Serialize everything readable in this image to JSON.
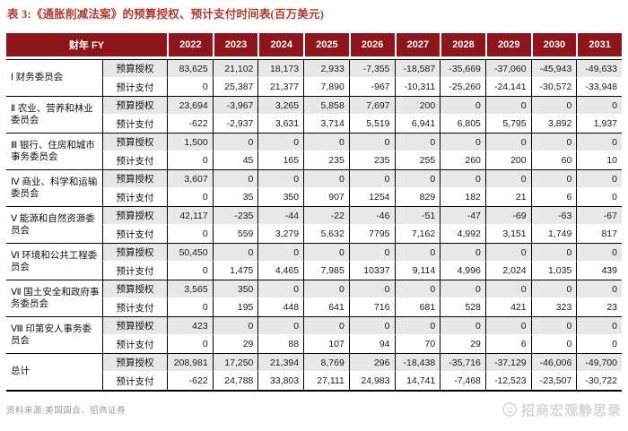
{
  "title": "表 3:《通胀削减法案》的预算授权、预计支付时间表(百万美元)",
  "colors": {
    "header_bg": "#8d151b",
    "title_text": "#b4392f",
    "alt_row_bg": "#e8e8e8",
    "grid_border": "#000000",
    "source_text": "#9b9b9b",
    "watermark_text": "#d7d7d7"
  },
  "table": {
    "corner_label": "财年 FY",
    "years": [
      "2022",
      "2023",
      "2024",
      "2025",
      "2026",
      "2027",
      "2028",
      "2029",
      "2030",
      "2031"
    ],
    "metric_labels": {
      "auth": "预算授权",
      "pay": "预计支付"
    },
    "groups": [
      {
        "name": "Ⅰ 财务委员会",
        "auth": [
          "83,625",
          "21,102",
          "18,173",
          "2,933",
          "-7,355",
          "-18,587",
          "-35,669",
          "-37,060",
          "-45,943",
          "-49,633"
        ],
        "pay": [
          "0",
          "25,387",
          "21,377",
          "7,890",
          "-967",
          "-10,311",
          "-25,260",
          "-24,141",
          "-30,572",
          "-33,948"
        ]
      },
      {
        "name": "Ⅱ 农业、营养和林业委员会",
        "auth": [
          "23,694",
          "-3,967",
          "3,265",
          "5,858",
          "7,697",
          "200",
          "0",
          "0",
          "0",
          "0"
        ],
        "pay": [
          "-622",
          "-2,937",
          "3,631",
          "3,714",
          "5,519",
          "6,941",
          "6,805",
          "5,795",
          "3,892",
          "1,937"
        ]
      },
      {
        "name": "Ⅲ 银行、住房和城市事务委员会",
        "auth": [
          "1,500",
          "0",
          "0",
          "0",
          "0",
          "0",
          "0",
          "0",
          "0",
          "0"
        ],
        "pay": [
          "0",
          "45",
          "165",
          "235",
          "235",
          "255",
          "260",
          "200",
          "60",
          "10"
        ]
      },
      {
        "name": "Ⅳ 商业、科学和运输委员会",
        "auth": [
          "3,607",
          "0",
          "0",
          "0",
          "0",
          "0",
          "0",
          "0",
          "0",
          "0"
        ],
        "pay": [
          "0",
          "35",
          "350",
          "907",
          "1254",
          "829",
          "182",
          "21",
          "6",
          "0"
        ]
      },
      {
        "name": "Ⅴ 能源和自然资源委员会",
        "auth": [
          "42,117",
          "-235",
          "-44",
          "-22",
          "-46",
          "-51",
          "-47",
          "-69",
          "-63",
          "-67"
        ],
        "pay": [
          "0",
          "559",
          "3,279",
          "5,632",
          "7795",
          "7,162",
          "4,992",
          "3,151",
          "1,749",
          "817"
        ]
      },
      {
        "name": "Ⅵ 环境和公共工程委员会",
        "auth": [
          "50,450",
          "0",
          "0",
          "0",
          "0",
          "0",
          "0",
          "0",
          "0",
          "0"
        ],
        "pay": [
          "0",
          "1,475",
          "4,465",
          "7,985",
          "10337",
          "9,114",
          "4,996",
          "2,024",
          "1,035",
          "439"
        ]
      },
      {
        "name": "Ⅶ 国土安全和政府事务委员会",
        "auth": [
          "3,565",
          "350",
          "0",
          "0",
          "0",
          "0",
          "0",
          "0",
          "0",
          "0"
        ],
        "pay": [
          "0",
          "195",
          "448",
          "641",
          "716",
          "681",
          "528",
          "421",
          "323",
          "23"
        ]
      },
      {
        "name": "Ⅷ 印第安人事务委员会",
        "auth": [
          "423",
          "0",
          "0",
          "0",
          "0",
          "0",
          "0",
          "0",
          "0",
          "0"
        ],
        "pay": [
          "0",
          "29",
          "88",
          "107",
          "94",
          "70",
          "29",
          "6",
          "0",
          "0"
        ]
      },
      {
        "name": "总计",
        "auth": [
          "208,981",
          "17,250",
          "21,394",
          "8,769",
          "296",
          "-18,438",
          "-35,716",
          "-37,129",
          "-46,006",
          "-49,700"
        ],
        "pay": [
          "-622",
          "24,788",
          "33,803",
          "27,111",
          "24,983",
          "14,741",
          "-7,468",
          "-12,523",
          "-23,507",
          "-30,722"
        ]
      }
    ]
  },
  "footer": {
    "source": "资料来源:美国国会、招商证券"
  },
  "watermark": {
    "text": "招商宏观静思录",
    "logo": "smiley-circle-icon"
  }
}
